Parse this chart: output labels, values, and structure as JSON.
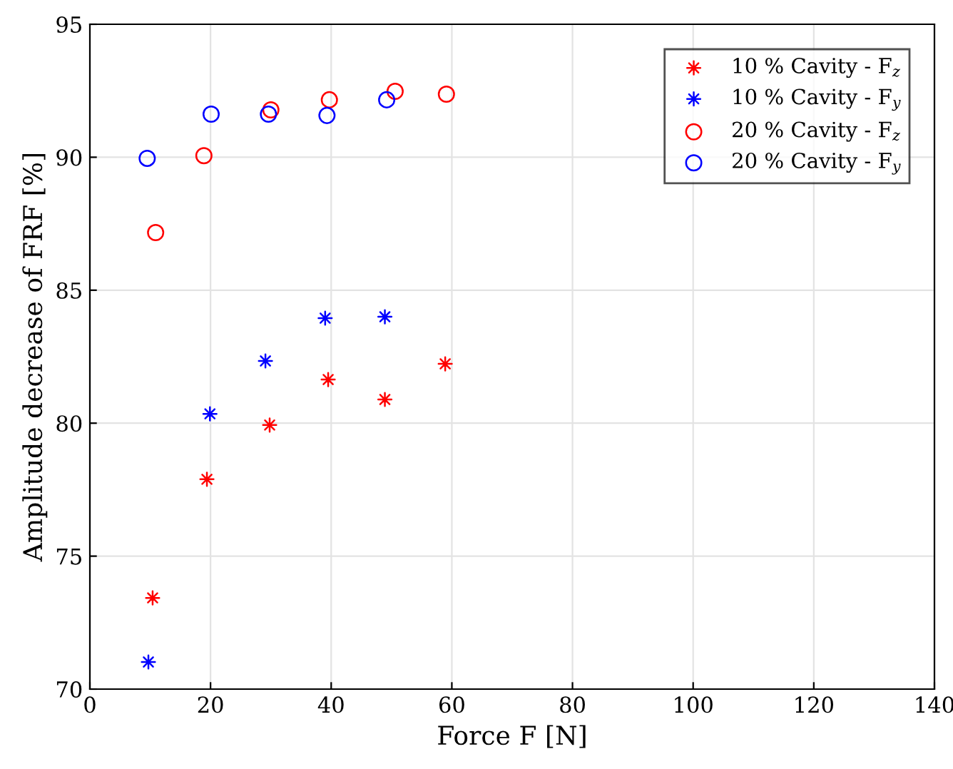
{
  "chart_data": {
    "type": "scatter",
    "xlabel": "Force F [N]",
    "ylabel": "Amplitude decrease of FRF [%]",
    "xlim": [
      0,
      140
    ],
    "xticks": [
      0,
      20,
      40,
      60,
      80,
      100,
      120,
      140
    ],
    "ylim": [
      70,
      95
    ],
    "yticks": [
      70,
      75,
      80,
      85,
      90,
      95
    ],
    "grid": true,
    "legend": "top right",
    "series": [
      {
        "name": "10 % Cavity - F$_{z}$",
        "color": "#ff0000",
        "marker": "star",
        "x": [
          10.4,
          19.4,
          29.8,
          39.5,
          48.9,
          58.9
        ],
        "values": [
          73.43,
          77.89,
          79.93,
          81.64,
          80.89,
          82.23
        ]
      },
      {
        "name": "10 % Cavity - F$_{y}$",
        "color": "#0000ff",
        "marker": "star",
        "x": [
          9.7,
          19.9,
          29.1,
          39.0,
          48.9
        ],
        "values": [
          71.02,
          80.35,
          82.34,
          83.95,
          84.0
        ]
      },
      {
        "name": "20 % Cavity - F$_{z}$",
        "color": "#ff0000",
        "marker": "circle",
        "x": [
          10.9,
          18.9,
          30.0,
          39.7,
          50.6,
          59.1
        ],
        "values": [
          87.17,
          90.06,
          91.78,
          92.16,
          92.48,
          92.37
        ]
      },
      {
        "name": "20 % Cavity - F$_{y}$",
        "color": "#0000ff",
        "marker": "circle",
        "x": [
          9.5,
          20.1,
          29.6,
          39.3,
          49.2
        ],
        "values": [
          89.96,
          91.62,
          91.62,
          91.57,
          92.16
        ]
      }
    ]
  }
}
